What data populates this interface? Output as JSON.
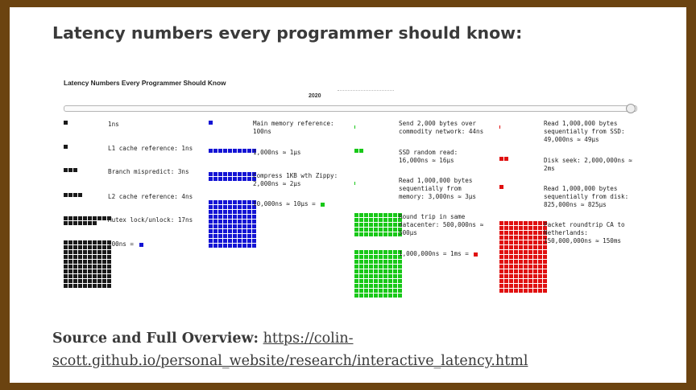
{
  "slide_title": "Latency numbers every programmer should know:",
  "viz": {
    "title": "Latency Numbers Every Programmer Should Know",
    "year": "2020",
    "slider": {
      "value": 2020
    },
    "colors": {
      "black": "#1a1a1a",
      "blue": "#1414d4",
      "green": "#18c818",
      "red": "#e01010"
    },
    "columns": [
      {
        "color": "black",
        "items": [
          {
            "label": "1ns",
            "squares": 1
          },
          {
            "label": "L1 cache reference: 1ns",
            "squares": 1
          },
          {
            "label": "Branch mispredict: 3ns",
            "squares": 3
          },
          {
            "label": "L2 cache reference: 4ns",
            "squares": 4
          },
          {
            "label": "Mutex lock/unlock: 17ns",
            "squares": 17
          },
          {
            "label": "100ns = ",
            "squares": 100,
            "equals_color": "blue"
          }
        ]
      },
      {
        "color": "blue",
        "items": [
          {
            "label": "Main memory reference: 100ns",
            "squares": 1
          },
          {
            "label": "1,000ns ≈ 1μs",
            "squares": 10
          },
          {
            "label": "Compress 1KB wth Zippy: 2,000ns ≈ 2μs",
            "squares": 20
          },
          {
            "label": "10,000ns ≈ 10μs = ",
            "squares": 100,
            "equals_color": "green"
          }
        ]
      },
      {
        "color": "green",
        "items": [
          {
            "label": "Send 2,000 bytes over commodity network: 44ns",
            "squares": 0
          },
          {
            "label": "SSD random read: 16,000ns ≈ 16μs",
            "squares": 2
          },
          {
            "label": "Read 1,000,000 bytes sequentially from memory: 3,000ns ≈ 3μs",
            "squares": 0
          },
          {
            "label": "Round trip in same datacenter: 500,000ns ≈ 500μs",
            "squares": 50
          },
          {
            "label": "1,000,000ns = 1ms = ",
            "squares": 100,
            "equals_color": "red"
          }
        ]
      },
      {
        "color": "red",
        "items": [
          {
            "label": "Read 1,000,000 bytes sequentially from SSD: 49,000ns ≈ 49μs",
            "squares": 0
          },
          {
            "label": "Disk seek: 2,000,000ns ≈ 2ms",
            "squares": 2
          },
          {
            "label": "Read 1,000,000 bytes sequentially from disk: 825,000ns ≈ 825μs",
            "squares": 1
          },
          {
            "label": "Packet roundtrip CA to Netherlands: 150,000,000ns ≈ 150ms",
            "squares": 150
          }
        ]
      }
    ]
  },
  "source": {
    "label": "Source and Full Overview:",
    "link_text": "https://colin-scott.github.io/personal_website/research/interactive_latency.html"
  }
}
